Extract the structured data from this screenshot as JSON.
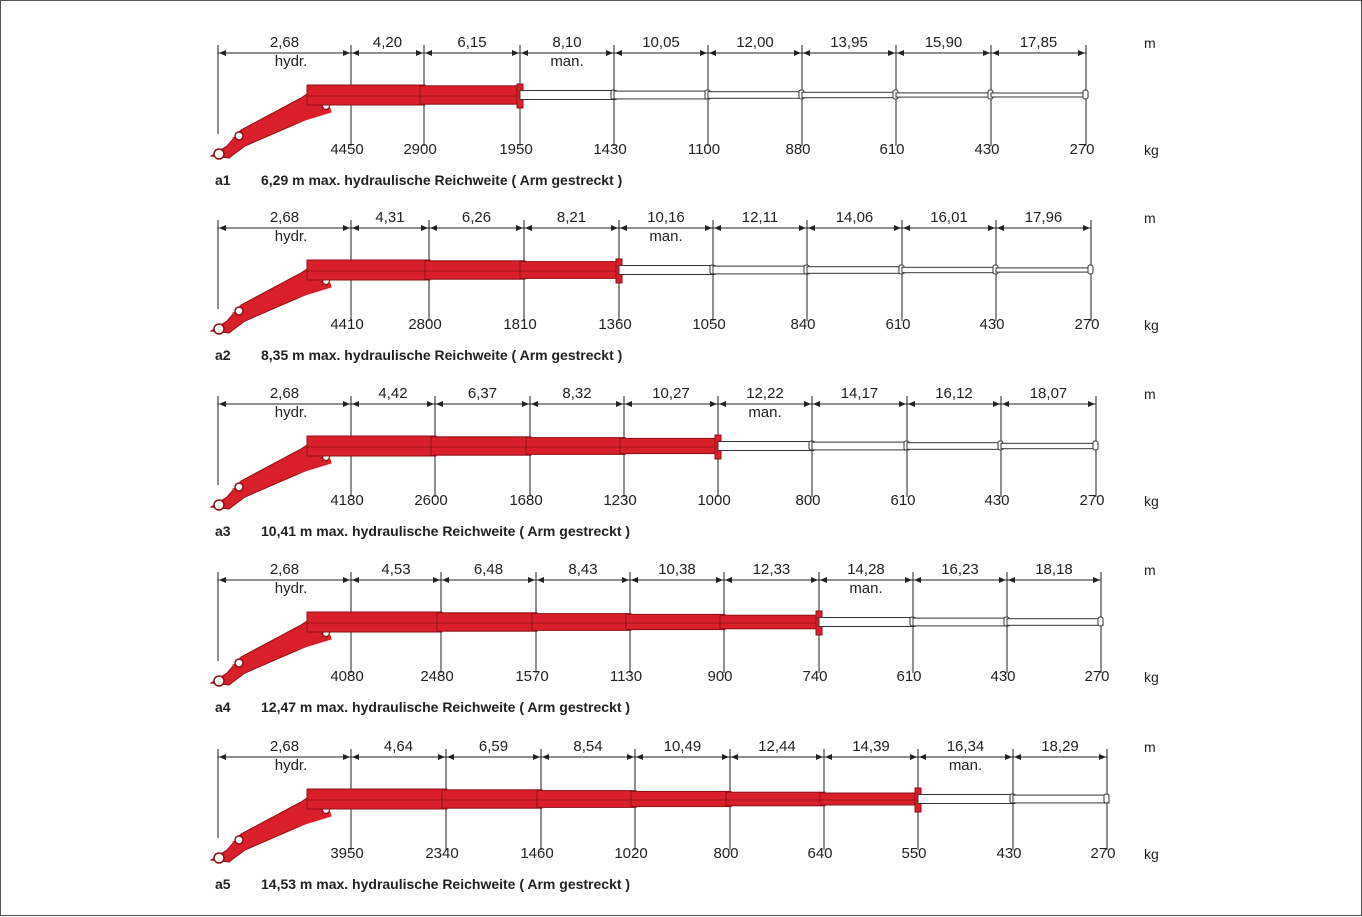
{
  "colors": {
    "boom_hydraulic": "#d9202a",
    "boom_hydraulic_dark": "#8e1017",
    "boom_manual_outline": "#333333",
    "dimension_line": "#222222"
  },
  "units": {
    "reach": "m",
    "load": "kg"
  },
  "configurations": [
    {
      "id": "a1",
      "caption": "6,29 m max. hydraulische Reichweite ( Arm gestreckt )",
      "hydr_label": "hydr.",
      "man_label": "man.",
      "man_index": 3,
      "reaches": [
        "2,68",
        "4,20",
        "6,15",
        "8,10",
        "10,05",
        "12,00",
        "13,95",
        "15,90",
        "17,85"
      ],
      "loads": [
        "4450",
        "2900",
        "1950",
        "1430",
        "1100",
        "880",
        "610",
        "430",
        "270"
      ]
    },
    {
      "id": "a2",
      "caption": "8,35 m max. hydraulische Reichweite ( Arm gestreckt )",
      "hydr_label": "hydr.",
      "man_label": "man.",
      "man_index": 4,
      "reaches": [
        "2,68",
        "4,31",
        "6,26",
        "8,21",
        "10,16",
        "12,11",
        "14,06",
        "16,01",
        "17,96"
      ],
      "loads": [
        "4410",
        "2800",
        "1810",
        "1360",
        "1050",
        "840",
        "610",
        "430",
        "270"
      ]
    },
    {
      "id": "a3",
      "caption": "10,41 m max. hydraulische Reichweite ( Arm gestreckt )",
      "hydr_label": "hydr.",
      "man_label": "man.",
      "man_index": 5,
      "reaches": [
        "2,68",
        "4,42",
        "6,37",
        "8,32",
        "10,27",
        "12,22",
        "14,17",
        "16,12",
        "18,07"
      ],
      "loads": [
        "4180",
        "2600",
        "1680",
        "1230",
        "1000",
        "800",
        "610",
        "430",
        "270"
      ]
    },
    {
      "id": "a4",
      "caption": "12,47 m max. hydraulische Reichweite ( Arm gestreckt )",
      "hydr_label": "hydr.",
      "man_label": "man.",
      "man_index": 6,
      "reaches": [
        "2,68",
        "4,53",
        "6,48",
        "8,43",
        "10,38",
        "12,33",
        "14,28",
        "16,23",
        "18,18"
      ],
      "loads": [
        "4080",
        "2480",
        "1570",
        "1130",
        "900",
        "740",
        "610",
        "430",
        "270"
      ]
    },
    {
      "id": "a5",
      "caption": "14,53 m max. hydraulische Reichweite ( Arm gestreckt )",
      "hydr_label": "hydr.",
      "man_label": "man.",
      "man_index": 7,
      "reaches": [
        "2,68",
        "4,64",
        "6,59",
        "8,54",
        "10,49",
        "12,44",
        "14,39",
        "16,34",
        "18,29"
      ],
      "loads": [
        "3950",
        "2340",
        "1460",
        "1020",
        "800",
        "640",
        "550",
        "430",
        "270"
      ]
    }
  ]
}
